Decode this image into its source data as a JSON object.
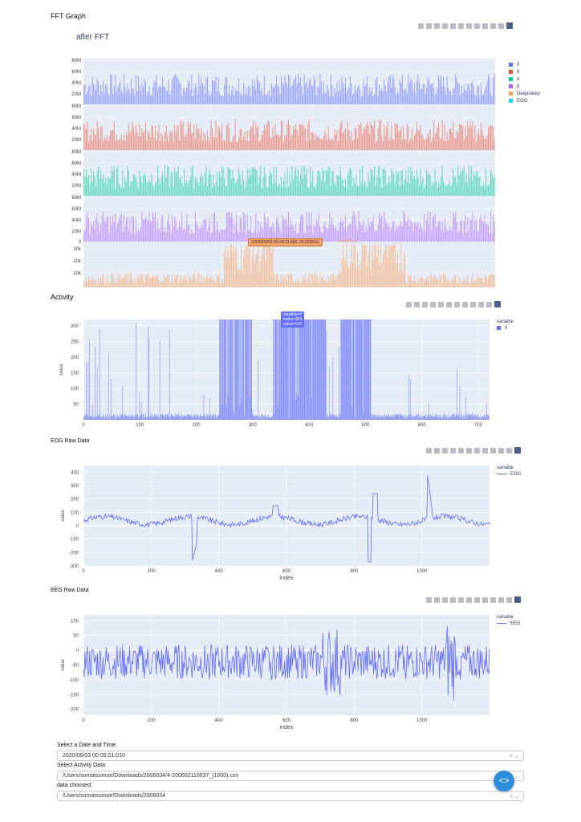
{
  "fft": {
    "section_title": "FFT Graph",
    "plot_title": "after FFT",
    "legend": [
      {
        "label": "δ",
        "color": "#636efa"
      },
      {
        "label": "θ",
        "color": "#ef553b"
      },
      {
        "label": "α",
        "color": "#00cc96"
      },
      {
        "label": "β",
        "color": "#ab63fa"
      },
      {
        "label": "Deepsleep",
        "color": "#ffa15a"
      },
      {
        "label": "EOG",
        "color": "#19d3f3"
      }
    ],
    "tick_labels_m": [
      "80M",
      "60M",
      "40M",
      "20M"
    ],
    "tick_labels_k": [
      "30k",
      "20k",
      "10k"
    ],
    "tick_zero": "0",
    "hover_text": "(2020/06/03 09:34:23.880, 26.55361k)",
    "hover_series": "Deepsleep"
  },
  "activity": {
    "section_title": "Activity",
    "y_label": "value",
    "legend_title": "variable",
    "legend_item": "0",
    "hover": [
      "variable=0",
      "index=354",
      "value=318"
    ],
    "color": "#636efa"
  },
  "eog": {
    "section_title": "EOG Raw Data",
    "x_label": "index",
    "y_label": "value",
    "legend_title": "variable",
    "legend_item": "EOG"
  },
  "eeg": {
    "section_title": "EEG Raw Data",
    "x_label": "index",
    "y_label": "value",
    "legend_title": "variable",
    "legend_item": "EEG"
  },
  "controls": {
    "date_label": "Select a Date and Time:",
    "date_value": "2020/06/03 00:00:21.010",
    "activity_label": "Select Activity Data:",
    "activity_value": "/Users/somatsumoe/Downloads/2006034/4-200602110637_(1000).csv",
    "data_label": "data choosed:",
    "data_value": "/Users/somatsumoe/Downloads/2006034",
    "clear_icon": "×",
    "caret_icon": "⌄"
  },
  "chart_data": [
    {
      "type": "bar",
      "title": "after FFT",
      "series": [
        {
          "name": "δ",
          "ylim": [
            0,
            80000000
          ]
        },
        {
          "name": "θ",
          "ylim": [
            0,
            80000000
          ]
        },
        {
          "name": "α",
          "ylim": [
            0,
            80000000
          ]
        },
        {
          "name": "β",
          "ylim": [
            0,
            80000000
          ]
        },
        {
          "name": "Deepsleep",
          "ylim": [
            0,
            35000
          ]
        }
      ]
    },
    {
      "type": "bar",
      "title": "",
      "xlabel": "",
      "ylabel": "value",
      "xlim": [
        0,
        720
      ],
      "ylim": [
        0,
        320
      ],
      "x_ticks": [
        0,
        100,
        200,
        300,
        400,
        500,
        600,
        700
      ],
      "y_ticks": [
        50,
        100,
        150,
        200,
        250,
        300
      ],
      "series": [
        {
          "name": "0"
        }
      ]
    },
    {
      "type": "line",
      "xlabel": "index",
      "ylabel": "value",
      "xlim": [
        0,
        1200
      ],
      "ylim": [
        -300,
        450
      ],
      "x_ticks": [
        0,
        200,
        400,
        600,
        800,
        1000
      ],
      "y_ticks": [
        -300,
        -200,
        -100,
        0,
        100,
        200,
        300,
        400
      ],
      "series": [
        {
          "name": "EOG"
        }
      ]
    },
    {
      "type": "line",
      "xlabel": "index",
      "ylabel": "value",
      "xlim": [
        0,
        1200
      ],
      "ylim": [
        -220,
        120
      ],
      "x_ticks": [
        0,
        200,
        400,
        600,
        800,
        1000
      ],
      "y_ticks": [
        -200,
        -150,
        -100,
        -50,
        0,
        50,
        100
      ],
      "series": [
        {
          "name": "EEG"
        }
      ]
    }
  ]
}
